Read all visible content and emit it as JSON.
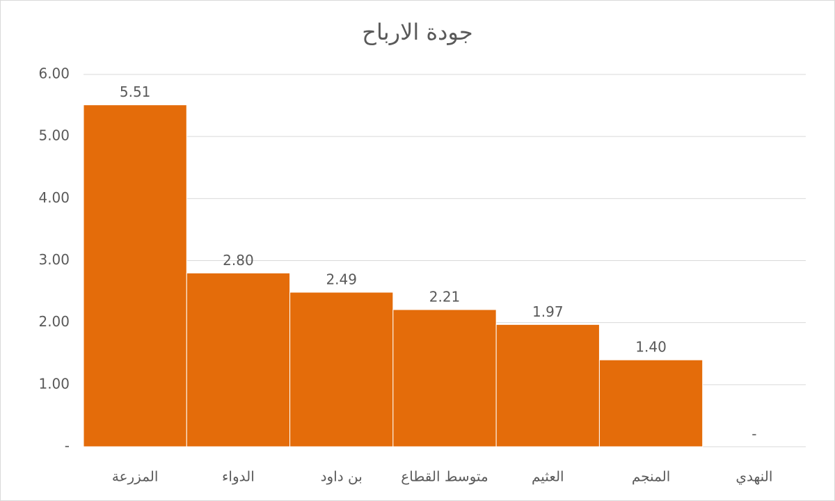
{
  "chart_data": {
    "type": "bar",
    "title": "جودة الارباح",
    "categories": [
      "المزرعة",
      "الدواء",
      "بن داود",
      "متوسط القطاع",
      "العثيم",
      "المنجم",
      "النهدي"
    ],
    "values": [
      5.51,
      2.8,
      2.49,
      2.21,
      1.97,
      1.4,
      0
    ],
    "value_labels": [
      "5.51",
      "2.80",
      "2.49",
      "2.21",
      "1.97",
      "1.40",
      "-"
    ],
    "color": "#e46c0a",
    "ylim": [
      0,
      6
    ],
    "yticks": [
      {
        "value": 0,
        "label": "-"
      },
      {
        "value": 1,
        "label": "1.00"
      },
      {
        "value": 2,
        "label": "2.00"
      },
      {
        "value": 3,
        "label": "3.00"
      },
      {
        "value": 4,
        "label": "4.00"
      },
      {
        "value": 5,
        "label": "5.00"
      },
      {
        "value": 6,
        "label": "6.00"
      }
    ],
    "grid": true
  }
}
